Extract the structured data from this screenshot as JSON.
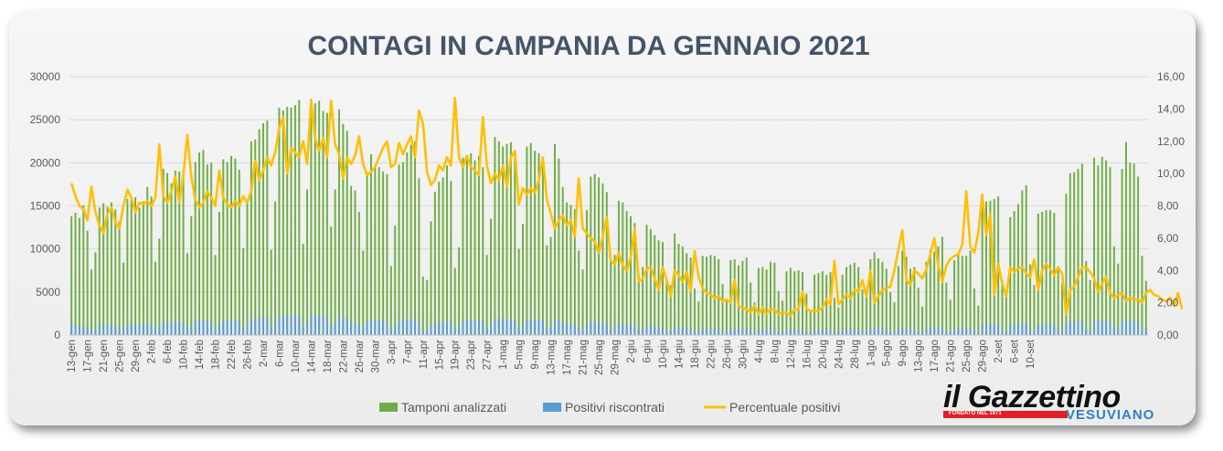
{
  "chart_data": {
    "type": "bar",
    "title": "CONTAGI IN CAMPANIA DA GENNAIO 2021",
    "xlabel": "",
    "ylabel_left": "",
    "ylabel_right": "",
    "ylim_left": [
      0,
      30000
    ],
    "ylim_right": [
      0,
      16
    ],
    "yticks_left": [
      "0",
      "5000",
      "10000",
      "15000",
      "20000",
      "25000",
      "30000"
    ],
    "yticks_right": [
      "0,00",
      "2,00",
      "4,00",
      "6,00",
      "8,00",
      "10,00",
      "12,00",
      "14,00",
      "16,00"
    ],
    "grid": true,
    "legend_position": "bottom",
    "x_tick_labels": [
      "13-gen",
      "17-gen",
      "21-gen",
      "25-gen",
      "29-gen",
      "2-feb",
      "6-feb",
      "10-feb",
      "14-feb",
      "18-feb",
      "22-feb",
      "26-feb",
      "2-mar",
      "6-mar",
      "10-mar",
      "14-mar",
      "18-mar",
      "22-mar",
      "26-mar",
      "30-mar",
      "3-apr",
      "7-apr",
      "11-apr",
      "15-apr",
      "19-apr",
      "23-apr",
      "27-apr",
      "1-mag",
      "5-mag",
      "9-mag",
      "13-mag",
      "17-mag",
      "21-mag",
      "25-mag",
      "29-mag",
      "2-giu",
      "6-giu",
      "10-giu",
      "14-giu",
      "18-giu",
      "22-giu",
      "26-giu",
      "30-giu",
      "4-lug",
      "8-lug",
      "12-lug",
      "16-lug",
      "20-lug",
      "24-lug",
      "28-lug",
      "1-ago",
      "5-ago",
      "9-ago",
      "13-ago",
      "17-ago",
      "21-ago",
      "25-ago",
      "29-ago",
      "2-set",
      "6-set",
      "10-set"
    ],
    "series": [
      {
        "name": "Tamponi analizzati",
        "type": "bar",
        "axis": "left",
        "color": "#70ad47",
        "values": [
          13800,
          14200,
          13600,
          15100,
          12100,
          7600,
          9600,
          14800,
          15300,
          14900,
          15400,
          14600,
          13200,
          8400,
          15800,
          16100,
          16000,
          14800,
          15500,
          17200,
          16100,
          8500,
          11200,
          19300,
          18800,
          17600,
          19100,
          19000,
          18700,
          9500,
          13800,
          20100,
          21200,
          21500,
          19800,
          20000,
          9300,
          14300,
          20400,
          20100,
          20800,
          20500,
          19200,
          10100,
          15300,
          22500,
          22700,
          23900,
          24600,
          24900,
          9900,
          15500,
          26400,
          26100,
          26500,
          26400,
          26700,
          27300,
          10600,
          16900,
          27400,
          26900,
          27200,
          26000,
          25800,
          12600,
          16900,
          26200,
          24500,
          23700,
          17300,
          16800,
          14300,
          9800,
          18900,
          21000,
          19700,
          19500,
          19000,
          18700,
          8000,
          12700,
          19800,
          20100,
          21200,
          22100,
          22500,
          18200,
          6800,
          6400,
          13200,
          16600,
          17800,
          18300,
          19700,
          17900,
          7800,
          10200,
          20600,
          20800,
          21100,
          20300,
          20800,
          19500,
          9300,
          13500,
          23000,
          22500,
          21900,
          22200,
          22400,
          21000,
          10000,
          12900,
          21900,
          22300,
          21400,
          21100,
          20700,
          10400,
          11400,
          22200,
          20500,
          17200,
          15400,
          15100,
          14600,
          9800,
          7600,
          14500,
          18400,
          18700,
          18300,
          17600,
          16600,
          8500,
          9300,
          15600,
          15400,
          14400,
          13800,
          13000,
          7100,
          7900,
          12800,
          12300,
          11600,
          11000,
          10800,
          6600,
          5800,
          11800,
          10600,
          10300,
          9500,
          9000,
          5400,
          3900,
          9200,
          9100,
          9300,
          9200,
          8800,
          5900,
          4200,
          8700,
          8800,
          8100,
          8600,
          9000,
          6100,
          3800,
          7800,
          7900,
          7600,
          8500,
          8400,
          5100,
          4000,
          7400,
          7800,
          7400,
          7500,
          7300,
          4800,
          2900,
          7000,
          7200,
          7400,
          7000,
          7300,
          4300,
          3200,
          7000,
          7900,
          8200,
          8400,
          7900,
          5300,
          4500,
          8800,
          9600,
          8900,
          8500,
          7700,
          5000,
          3800,
          8000,
          9800,
          9100,
          7700,
          7900,
          5500,
          3300,
          8500,
          9900,
          9700,
          10300,
          11400,
          6100,
          4100,
          8700,
          9300,
          9200,
          9200,
          9800,
          5400,
          3400,
          14800,
          15500,
          15600,
          15800,
          16100,
          6400,
          4900,
          13700,
          14400,
          15200,
          16800,
          17400,
          8200,
          5800,
          14100,
          14300,
          14500,
          14500,
          14200,
          7900,
          6000,
          16400,
          18800,
          18900,
          19300,
          19900,
          8600,
          6400,
          20600,
          19700,
          20700,
          20300,
          19500,
          10300,
          8300,
          19300,
          22400,
          20000,
          19900,
          18400,
          9200,
          6300
        ],
        "values_first_days": [
          13800,
          14200,
          13600,
          15100,
          12100,
          7600,
          9600,
          14800,
          15300,
          14900,
          15400,
          14600,
          13200,
          8400,
          15800,
          16100,
          16000,
          14800,
          15500,
          17200,
          16100,
          8500,
          11200,
          19300,
          18800,
          17600,
          19100,
          19000,
          18700,
          9500,
          13800,
          20100,
          21200,
          21500,
          19800,
          20000,
          9300,
          14300,
          20400,
          20100,
          20800,
          20500,
          19200,
          10100,
          15300,
          22500,
          22700,
          23900,
          24600,
          24900,
          9900,
          15500,
          26400,
          26100,
          26500,
          26400,
          26700,
          27300,
          10600,
          16900
        ]
      },
      {
        "name": "Positivi riscontrati",
        "type": "bar",
        "axis": "left",
        "color": "#5b9bd5",
        "values": [
          1300,
          1150,
          1050,
          1030,
          850,
          520,
          640,
          1100,
          1200,
          1150,
          1200,
          980,
          870,
          560,
          1250,
          1310,
          1280,
          1220,
          1270,
          1400,
          1320,
          700,
          920,
          1550,
          1530,
          1480,
          1540,
          1560,
          1530,
          780,
          1100,
          1650,
          1760,
          1720,
          1600,
          1600,
          770,
          1180,
          1660,
          1650,
          1700,
          1680,
          1600,
          820,
          1260,
          1880,
          1920,
          2000,
          2050,
          2080,
          840,
          1320,
          2210,
          2170,
          2220,
          2200,
          2230,
          2290,
          900,
          1420,
          2280,
          2250,
          2270,
          2180,
          2160,
          1060,
          1420,
          2190,
          2050,
          1980,
          1440,
          1400,
          1190,
          830,
          1580,
          1760,
          1650,
          1630,
          1590,
          1560,
          670,
          1060,
          1650,
          1680,
          1770,
          1850,
          1880,
          1520,
          570,
          540,
          1100,
          1390,
          1490,
          1530,
          1640,
          1500,
          650,
          850,
          1720,
          1740,
          1760,
          1690,
          1740,
          1630,
          780,
          1130,
          1920,
          1880,
          1830,
          1850,
          1870,
          1750,
          840,
          1080,
          1830,
          1860,
          1790,
          1760,
          1730,
          870,
          950,
          1850,
          1710,
          1440,
          1290,
          1260,
          1220,
          820,
          640,
          1210,
          1540,
          1560,
          1530,
          1470,
          1390,
          710,
          780,
          1300,
          1290,
          1200,
          1150,
          1090,
          590,
          660,
          1070,
          1030,
          970,
          920,
          900,
          550,
          480,
          980,
          880,
          860,
          790,
          750,
          450,
          330,
          770,
          760,
          780,
          770,
          740,
          490,
          350,
          730,
          730,
          680,
          720,
          750,
          510,
          320,
          650,
          660,
          640,
          710,
          700,
          430,
          330,
          620,
          650,
          620,
          630,
          610,
          400,
          240,
          580,
          600,
          620,
          580,
          610,
          360,
          270,
          580,
          660,
          690,
          700,
          660,
          440,
          380,
          730,
          800,
          740,
          710,
          640,
          420,
          320,
          670,
          820,
          760,
          640,
          660,
          460,
          280,
          710,
          830,
          810,
          860,
          950,
          510,
          340,
          730,
          780,
          770,
          770,
          820,
          450,
          280,
          1240,
          1300,
          1300,
          1320,
          1340,
          530,
          410,
          1140,
          1200,
          1270,
          1400,
          1450,
          680,
          480,
          1180,
          1190,
          1210,
          1210,
          1180,
          660,
          500,
          1370,
          1570,
          1580,
          1610,
          1660,
          720,
          530,
          1720,
          1640,
          1730,
          1690,
          1630,
          860,
          690,
          1610,
          1870,
          1670,
          1660,
          1530,
          770,
          530
        ]
      },
      {
        "name": "Percentuale positivi",
        "type": "line",
        "axis": "right",
        "color": "#ffc000",
        "values": [
          9.4,
          8.6,
          8.0,
          7.8,
          7.1,
          9.2,
          7.6,
          6.8,
          6.3,
          7.5,
          7.9,
          7.0,
          6.6,
          8.0,
          9.0,
          8.5,
          7.6,
          8.2,
          8.1,
          8.3,
          8.0,
          8.5,
          11.8,
          8.6,
          8.2,
          8.9,
          9.8,
          8.2,
          9.9,
          12.4,
          9.8,
          8.4,
          7.9,
          8.2,
          8.9,
          8.5,
          8.0,
          10.2,
          8.5,
          8.1,
          7.9,
          8.3,
          8.0,
          8.6,
          8.2,
          8.9,
          10.8,
          9.6,
          10.2,
          11.0,
          10.5,
          11.3,
          12.8,
          13.5,
          10.0,
          11.6,
          11.3,
          11.0,
          12.0,
          10.6,
          14.5,
          12.2,
          11.4,
          12.2,
          11.0,
          14.5,
          11.8,
          11.2,
          9.7,
          11.0,
          10.6,
          11.1,
          12.3,
          10.6,
          9.9,
          10.1,
          10.4,
          11.0,
          11.6,
          12.0,
          10.4,
          10.6,
          11.9,
          11.2,
          11.8,
          12.3,
          11.0,
          13.9,
          13.1,
          10.1,
          9.3,
          9.6,
          10.5,
          10.2,
          11.0,
          10.5,
          14.7,
          11.0,
          10.4,
          11.1,
          10.4,
          10.2,
          9.9,
          13.5,
          10.5,
          9.4,
          10.0,
          9.6,
          10.5,
          9.2,
          11.0,
          11.4,
          8.1,
          9.1,
          8.7,
          9.1,
          8.8,
          9.6,
          11.0,
          8.4,
          7.5,
          6.6,
          7.1,
          7.4,
          6.8,
          7.1,
          6.1,
          9.7,
          6.6,
          6.3,
          6.0,
          5.8,
          5.1,
          6.1,
          7.3,
          4.6,
          4.4,
          5.1,
          4.3,
          4.0,
          4.8,
          6.6,
          3.3,
          3.5,
          4.1,
          4.2,
          3.5,
          2.8,
          4.2,
          3.4,
          2.4,
          4.0,
          3.7,
          3.3,
          3.9,
          2.7,
          5.2,
          3.6,
          2.9,
          2.6,
          2.5,
          2.3,
          2.4,
          2.1,
          2.2,
          2.0,
          3.4,
          1.8,
          1.7,
          1.6,
          1.4,
          1.8,
          1.3,
          1.7,
          1.3,
          1.6,
          1.6,
          1.3,
          1.4,
          1.4,
          1.2,
          1.6,
          1.6,
          2.7,
          1.6,
          1.5,
          1.5,
          1.5,
          1.7,
          2.2,
          1.9,
          4.6,
          1.9,
          2.2,
          2.5,
          2.3,
          2.8,
          2.7,
          3.4,
          2.4,
          4.0,
          2.0,
          2.4,
          2.8,
          2.9,
          3.0,
          4.0,
          5.3,
          6.5,
          3.4,
          3.1,
          4.0,
          3.8,
          3.5,
          4.1,
          5.0,
          6.0,
          4.3,
          3.3,
          4.3,
          4.7,
          4.9,
          5.0,
          5.6,
          8.9,
          5.5,
          5.1,
          6.3,
          8.7,
          6.2,
          7.5,
          2.5,
          4.4,
          3.2,
          2.4,
          4.2,
          3.9,
          4.1,
          4.2,
          3.8,
          3.6,
          4.7,
          2.8,
          4.0,
          4.4,
          4.1,
          3.7,
          4.2,
          3.8,
          1.3,
          2.8,
          3.0,
          3.6,
          4.2,
          4.2,
          3.9,
          3.5,
          2.7,
          3.2,
          3.6,
          2.6,
          2.3,
          2.5,
          2.6,
          2.1,
          2.3,
          2.2,
          2.2,
          2.0,
          2.6,
          2.8,
          2.5,
          2.4,
          2.2,
          2.1,
          2.3,
          1.8,
          2.6,
          1.6
        ]
      }
    ]
  },
  "logo": {
    "main": "il Gazzettino",
    "sub": "VESUVIANO",
    "tagline": "FONDATO NEL 1971"
  }
}
